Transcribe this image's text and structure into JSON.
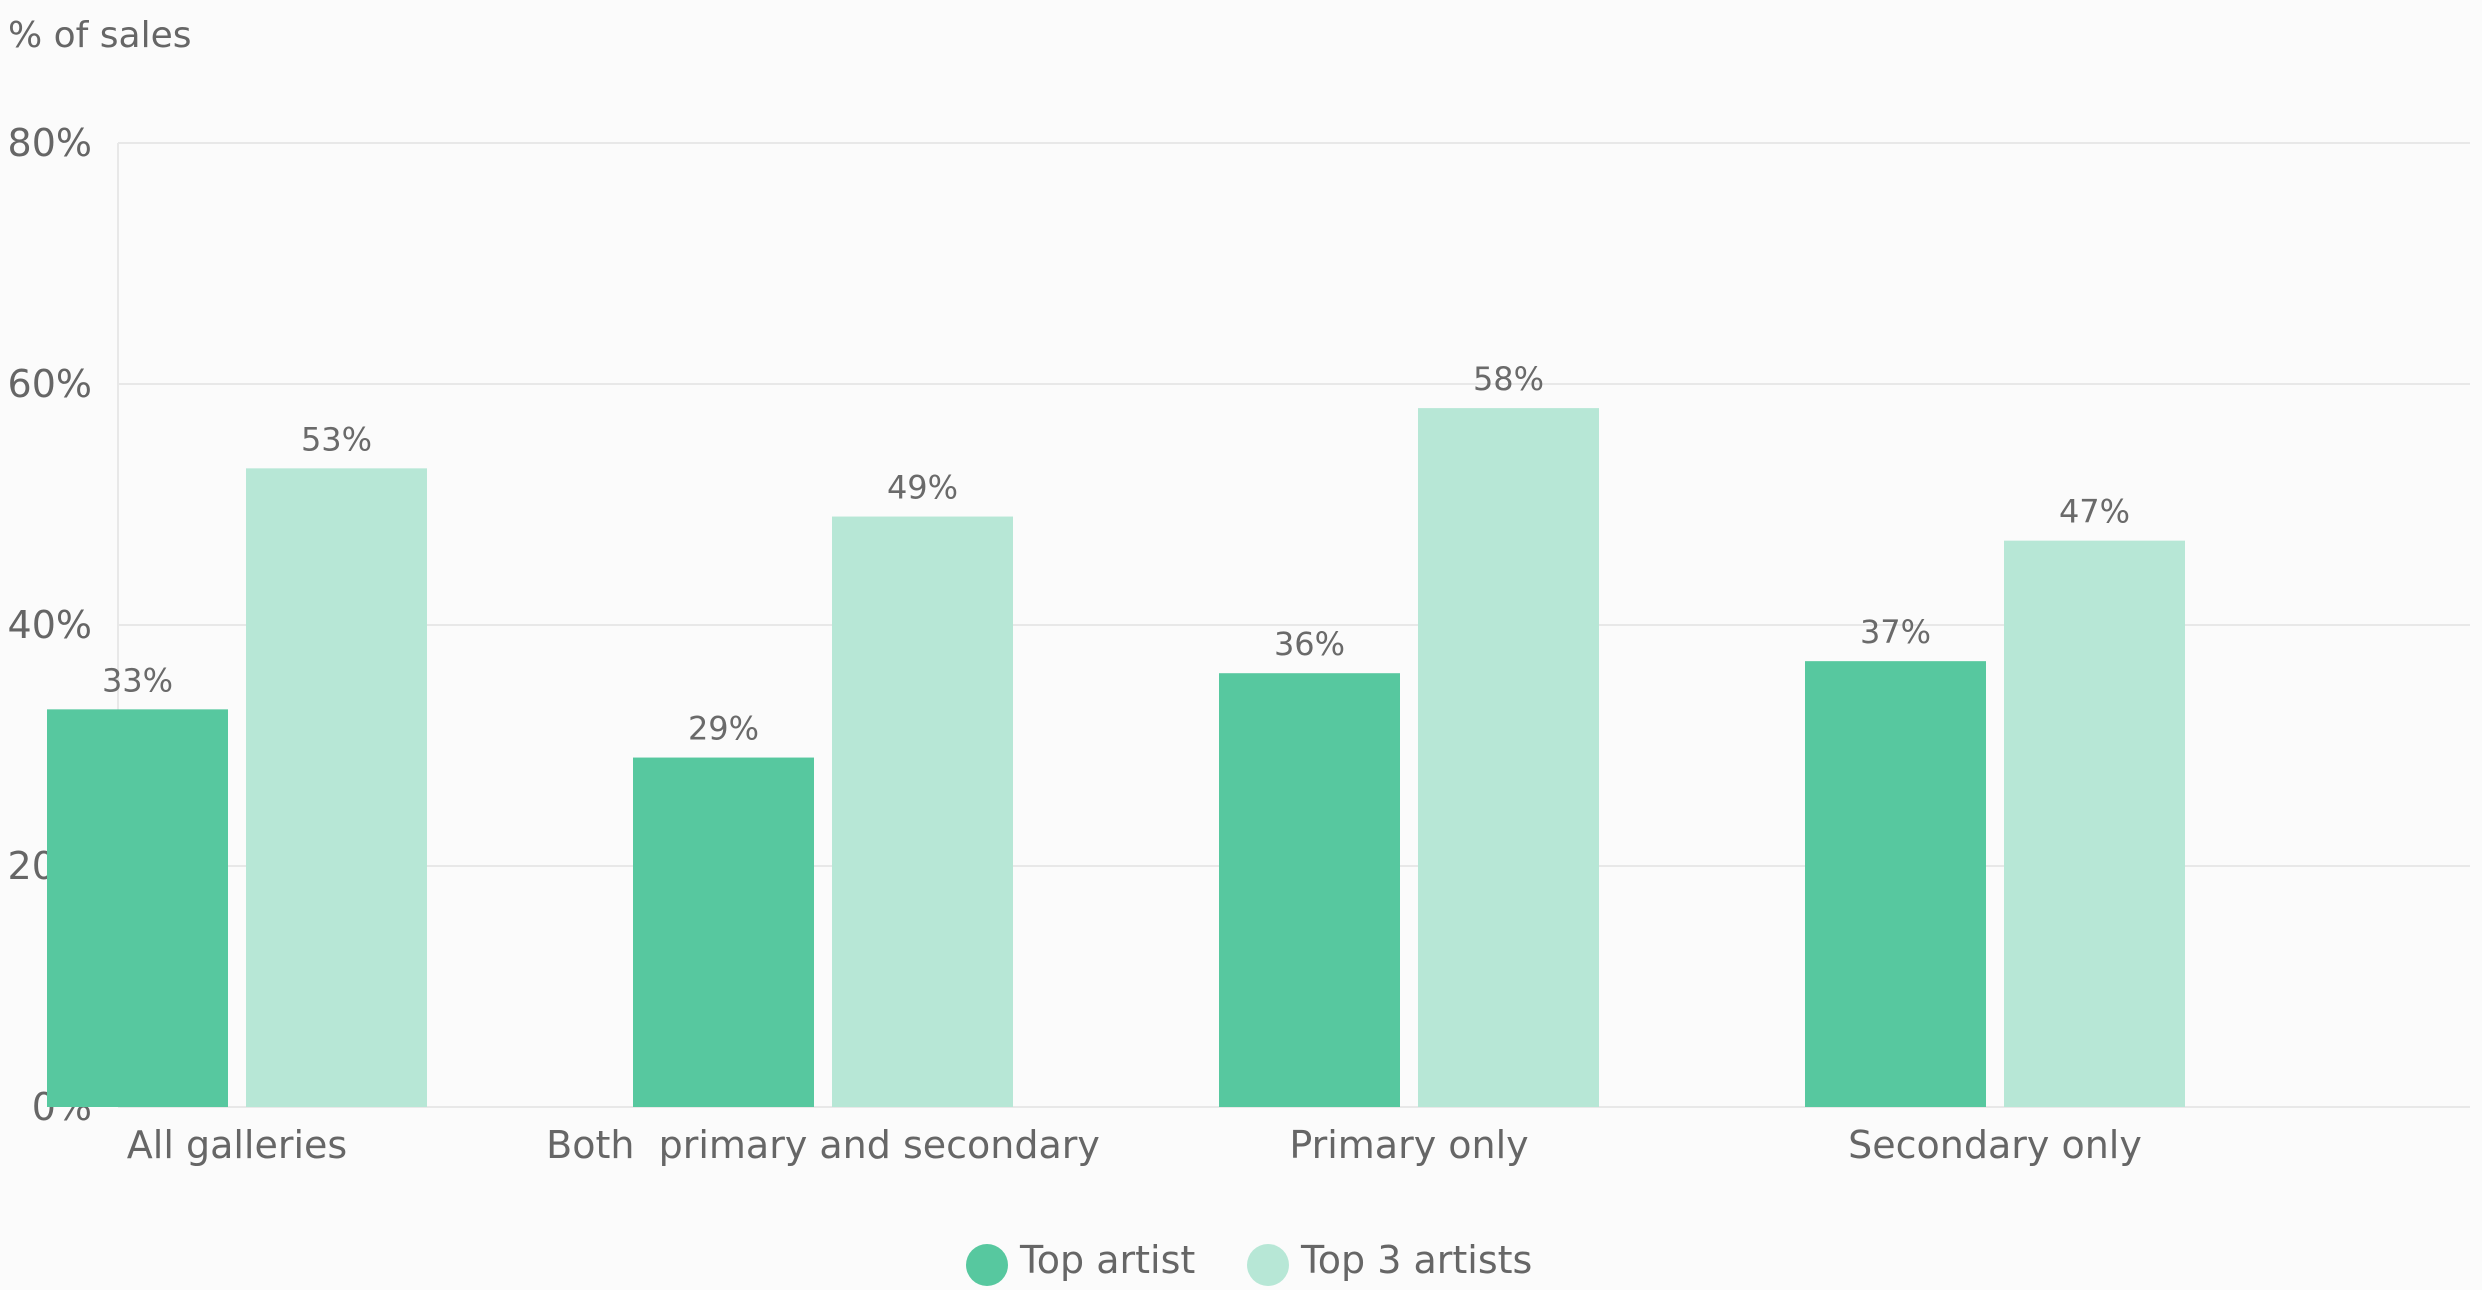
{
  "chart_data": {
    "type": "bar",
    "ylabel": "% of sales",
    "categories": [
      "All galleries",
      "Both  primary and secondary",
      "Primary only",
      "Secondary only"
    ],
    "series": [
      {
        "name": "Top artist",
        "values": [
          33,
          29,
          36,
          37
        ],
        "color": "#57c89f"
      },
      {
        "name": "Top 3 artists",
        "values": [
          53,
          49,
          58,
          47
        ],
        "color": "#b7e7d6"
      }
    ],
    "ylim": [
      0,
      80
    ],
    "yticks": [
      "0%",
      "20%",
      "40%",
      "60%",
      "80%"
    ],
    "value_suffix": "%",
    "grid": true,
    "legend_position": "bottom-center"
  }
}
